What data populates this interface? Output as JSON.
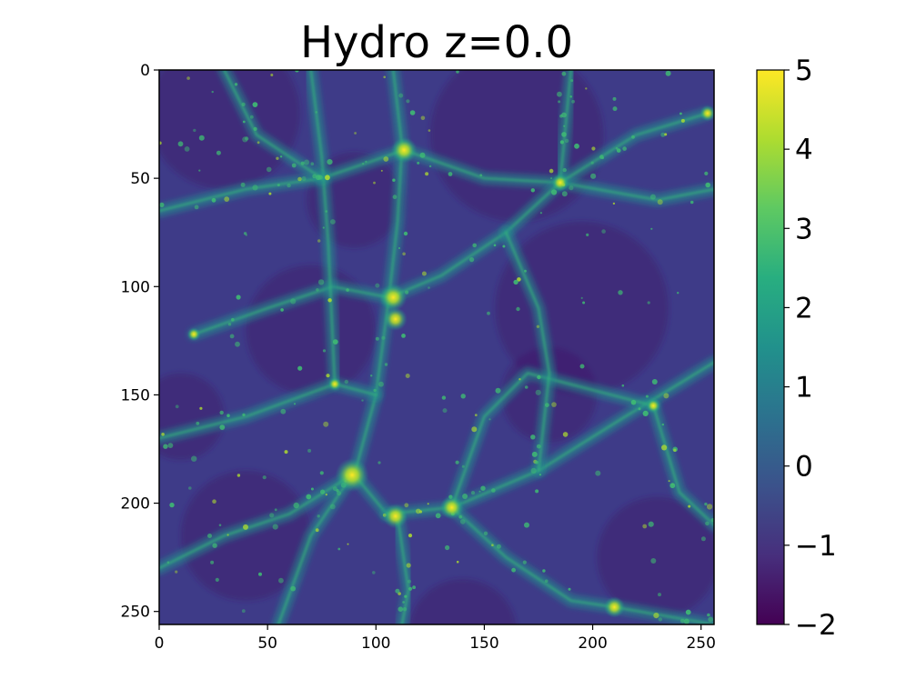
{
  "chart_data": {
    "type": "heatmap",
    "title": "Hydro z=0.0",
    "xlabel": "",
    "ylabel": "",
    "xlim": [
      0,
      256
    ],
    "ylim": [
      256,
      0
    ],
    "x_ticks": [
      "0",
      "50",
      "100",
      "150",
      "200",
      "250"
    ],
    "y_ticks": [
      "0",
      "50",
      "100",
      "150",
      "200",
      "250"
    ],
    "colormap": "viridis",
    "colorbar": {
      "range": [
        -2,
        5
      ],
      "ticks": [
        "5",
        "4",
        "3",
        "2",
        "1",
        "0",
        "−1",
        "−2"
      ]
    },
    "grid": false,
    "description_values": {
      "bright_clumps": [
        {
          "x": 89,
          "y": 187,
          "value": 4.8
        },
        {
          "x": 113,
          "y": 37,
          "value": 4.2
        },
        {
          "x": 108,
          "y": 105,
          "value": 4.3
        },
        {
          "x": 109,
          "y": 115,
          "value": 4.0
        },
        {
          "x": 109,
          "y": 206,
          "value": 4.1
        },
        {
          "x": 135,
          "y": 202,
          "value": 4.0
        },
        {
          "x": 210,
          "y": 248,
          "value": 3.8
        },
        {
          "x": 185,
          "y": 52,
          "value": 3.5
        },
        {
          "x": 253,
          "y": 20,
          "value": 3.4
        },
        {
          "x": 16,
          "y": 122,
          "value": 3.2
        },
        {
          "x": 228,
          "y": 155,
          "value": 3.3
        },
        {
          "x": 81,
          "y": 145,
          "value": 3.2
        }
      ]
    }
  }
}
